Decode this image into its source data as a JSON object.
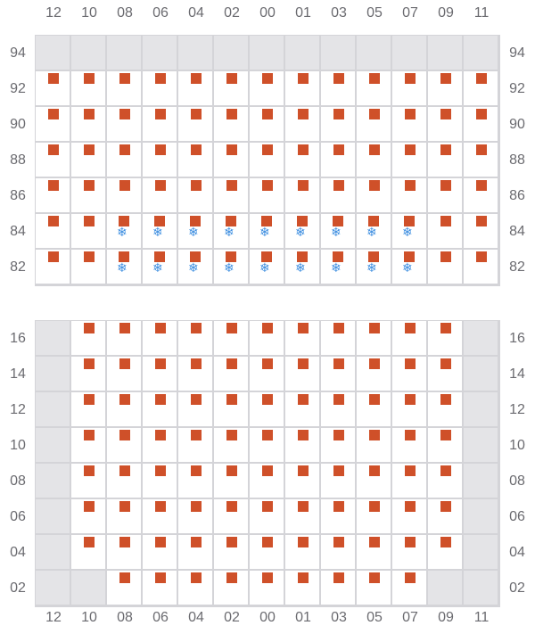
{
  "columns": [
    "12",
    "10",
    "08",
    "06",
    "04",
    "02",
    "00",
    "01",
    "03",
    "05",
    "07",
    "09",
    "11"
  ],
  "colors": {
    "seat": "#cf5029",
    "unavailable": "#e4e4e7",
    "snowflake": "#3d8ee0",
    "grid_line": "#d4d4d8"
  },
  "legend_codes": {
    "g": "unavailable",
    "s": "seat",
    "f": "seat-with-snowflake-icon",
    "e": "empty"
  },
  "sections": [
    {
      "rows": [
        {
          "label": "94",
          "cells": [
            "g",
            "g",
            "g",
            "g",
            "g",
            "g",
            "g",
            "g",
            "g",
            "g",
            "g",
            "g",
            "g"
          ]
        },
        {
          "label": "92",
          "cells": [
            "s",
            "s",
            "s",
            "s",
            "s",
            "s",
            "s",
            "s",
            "s",
            "s",
            "s",
            "s",
            "s"
          ]
        },
        {
          "label": "90",
          "cells": [
            "s",
            "s",
            "s",
            "s",
            "s",
            "s",
            "s",
            "s",
            "s",
            "s",
            "s",
            "s",
            "s"
          ]
        },
        {
          "label": "88",
          "cells": [
            "s",
            "s",
            "s",
            "s",
            "s",
            "s",
            "s",
            "s",
            "s",
            "s",
            "s",
            "s",
            "s"
          ]
        },
        {
          "label": "86",
          "cells": [
            "s",
            "s",
            "s",
            "s",
            "s",
            "s",
            "s",
            "s",
            "s",
            "s",
            "s",
            "s",
            "s"
          ]
        },
        {
          "label": "84",
          "cells": [
            "s",
            "s",
            "f",
            "f",
            "f",
            "f",
            "f",
            "f",
            "f",
            "f",
            "f",
            "s",
            "s"
          ]
        },
        {
          "label": "82",
          "cells": [
            "s",
            "s",
            "f",
            "f",
            "f",
            "f",
            "f",
            "f",
            "f",
            "f",
            "f",
            "s",
            "s"
          ]
        }
      ]
    },
    {
      "rows": [
        {
          "label": "16",
          "cells": [
            "g",
            "s",
            "s",
            "s",
            "s",
            "s",
            "s",
            "s",
            "s",
            "s",
            "s",
            "s",
            "g"
          ]
        },
        {
          "label": "14",
          "cells": [
            "g",
            "s",
            "s",
            "s",
            "s",
            "s",
            "s",
            "s",
            "s",
            "s",
            "s",
            "s",
            "g"
          ]
        },
        {
          "label": "12",
          "cells": [
            "g",
            "s",
            "s",
            "s",
            "s",
            "s",
            "s",
            "s",
            "s",
            "s",
            "s",
            "s",
            "g"
          ]
        },
        {
          "label": "10",
          "cells": [
            "g",
            "s",
            "s",
            "s",
            "s",
            "s",
            "s",
            "s",
            "s",
            "s",
            "s",
            "s",
            "g"
          ]
        },
        {
          "label": "08",
          "cells": [
            "g",
            "s",
            "s",
            "s",
            "s",
            "s",
            "s",
            "s",
            "s",
            "s",
            "s",
            "s",
            "g"
          ]
        },
        {
          "label": "06",
          "cells": [
            "g",
            "s",
            "s",
            "s",
            "s",
            "s",
            "s",
            "s",
            "s",
            "s",
            "s",
            "s",
            "g"
          ]
        },
        {
          "label": "04",
          "cells": [
            "g",
            "s",
            "s",
            "s",
            "s",
            "s",
            "s",
            "s",
            "s",
            "s",
            "s",
            "s",
            "g"
          ]
        },
        {
          "label": "02",
          "cells": [
            "g",
            "g",
            "s",
            "s",
            "s",
            "s",
            "s",
            "s",
            "s",
            "s",
            "s",
            "g",
            "g"
          ]
        }
      ]
    }
  ]
}
